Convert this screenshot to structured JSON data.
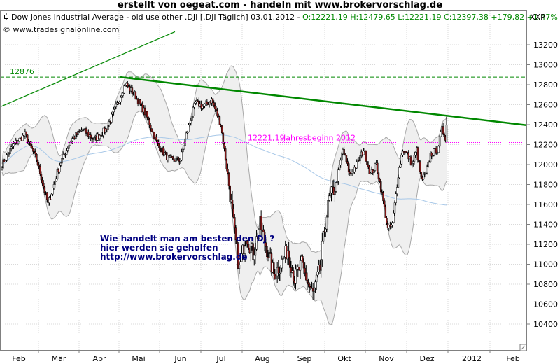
{
  "banner": "erstellt von oegeat.com  - handeln mit  www.brokervorschlag.de",
  "header": {
    "prefix": "Dow Jones Industrial Average - old use other .DJI [.DJI  Täglich] 03.01.2012 - ",
    "ohlc": "O:12221,19 H:12479,65 L:12221,19 C:12397,38 +179,82 +1,47%",
    "copyright": "© www.tradesignalonline.com",
    "axis_title": "XXP"
  },
  "colors": {
    "ohlc_text": "#008800",
    "level_12876": "#008800",
    "trendline": "#008800",
    "jahresbeginn": "#ff00ff",
    "promo_text": "#000080",
    "candle_up": "#ffffff",
    "candle_down": "#8b1a1a",
    "band_fill": "#efefef",
    "band_line": "#a8a8a8",
    "ma_line": "#a8c8e8"
  },
  "annotations": {
    "level_label": "12876",
    "jahresbeginn_value": "12221,19",
    "jahresbeginn_label": "Jahresbeginn 2012",
    "promo_line1": "Wie handelt man am besten  den DJ ?",
    "promo_line2": "hier werden sie geholfen",
    "promo_line3": "http://www.brokervorschlag.de"
  },
  "chart_data": {
    "type": "candlestick",
    "title": "Dow Jones Industrial Average - old use other .DJI [.DJI  Täglich] 03.01.2012",
    "ylim": [
      10300,
      13350
    ],
    "y_ticks": [
      10400,
      10600,
      10800,
      11000,
      11200,
      11400,
      11600,
      11800,
      12000,
      12200,
      12400,
      12600,
      12800,
      13000,
      13200
    ],
    "x_labels": [
      "Feb",
      "Mär",
      "Apr",
      "Mai",
      "Jun",
      "Jul",
      "Aug",
      "Sep",
      "Okt",
      "Nov",
      "Dez",
      "2012",
      "Feb"
    ],
    "horizontal_levels": [
      {
        "value": 12876,
        "label": "12876",
        "style": "dashed"
      },
      {
        "value": 12221.19,
        "label": "12221,19 Jahresbeginn 2012",
        "style": "dotted"
      }
    ],
    "trendlines": [
      {
        "points": [
          [
            "Mai",
            12876
          ],
          [
            "2012",
            12400
          ]
        ],
        "label": ""
      },
      {
        "points": [
          [
            "Jan",
            12580
          ],
          [
            "Apr",
            13330
          ]
        ],
        "label": ""
      }
    ],
    "last_bar": {
      "open": 12221.19,
      "high": 12479.65,
      "low": 12221.19,
      "close": 12397.38,
      "change": 179.82,
      "change_pct": 1.47
    },
    "price_path_anchors": [
      [
        0,
        12000
      ],
      [
        10,
        12200
      ],
      [
        20,
        12300
      ],
      [
        30,
        12050
      ],
      [
        40,
        11600
      ],
      [
        50,
        12000
      ],
      [
        60,
        12250
      ],
      [
        70,
        12350
      ],
      [
        80,
        12250
      ],
      [
        90,
        12350
      ],
      [
        100,
        12600
      ],
      [
        107,
        12810
      ],
      [
        115,
        12700
      ],
      [
        125,
        12500
      ],
      [
        135,
        12200
      ],
      [
        145,
        12050
      ],
      [
        155,
        12050
      ],
      [
        160,
        12300
      ],
      [
        168,
        12620
      ],
      [
        175,
        12580
      ],
      [
        182,
        12650
      ],
      [
        190,
        12400
      ],
      [
        197,
        11800
      ],
      [
        202,
        11300
      ],
      [
        206,
        10950
      ],
      [
        212,
        11300
      ],
      [
        218,
        11100
      ],
      [
        224,
        11400
      ],
      [
        230,
        11150
      ],
      [
        236,
        10900
      ],
      [
        242,
        11000
      ],
      [
        248,
        11150
      ],
      [
        254,
        10850
      ],
      [
        260,
        11000
      ],
      [
        266,
        10800
      ],
      [
        270,
        10700
      ],
      [
        276,
        10950
      ],
      [
        280,
        11350
      ],
      [
        284,
        11650
      ],
      [
        290,
        11800
      ],
      [
        296,
        12150
      ],
      [
        302,
        11900
      ],
      [
        308,
        12000
      ],
      [
        314,
        12150
      ],
      [
        320,
        11900
      ],
      [
        325,
        12000
      ],
      [
        330,
        11700
      ],
      [
        335,
        11350
      ],
      [
        339,
        11400
      ],
      [
        344,
        11900
      ],
      [
        348,
        12150
      ],
      [
        352,
        12100
      ],
      [
        356,
        12000
      ],
      [
        360,
        12150
      ],
      [
        364,
        11850
      ],
      [
        368,
        11900
      ],
      [
        372,
        12100
      ],
      [
        378,
        12150
      ],
      [
        382,
        12350
      ],
      [
        386,
        12250
      ]
    ]
  }
}
